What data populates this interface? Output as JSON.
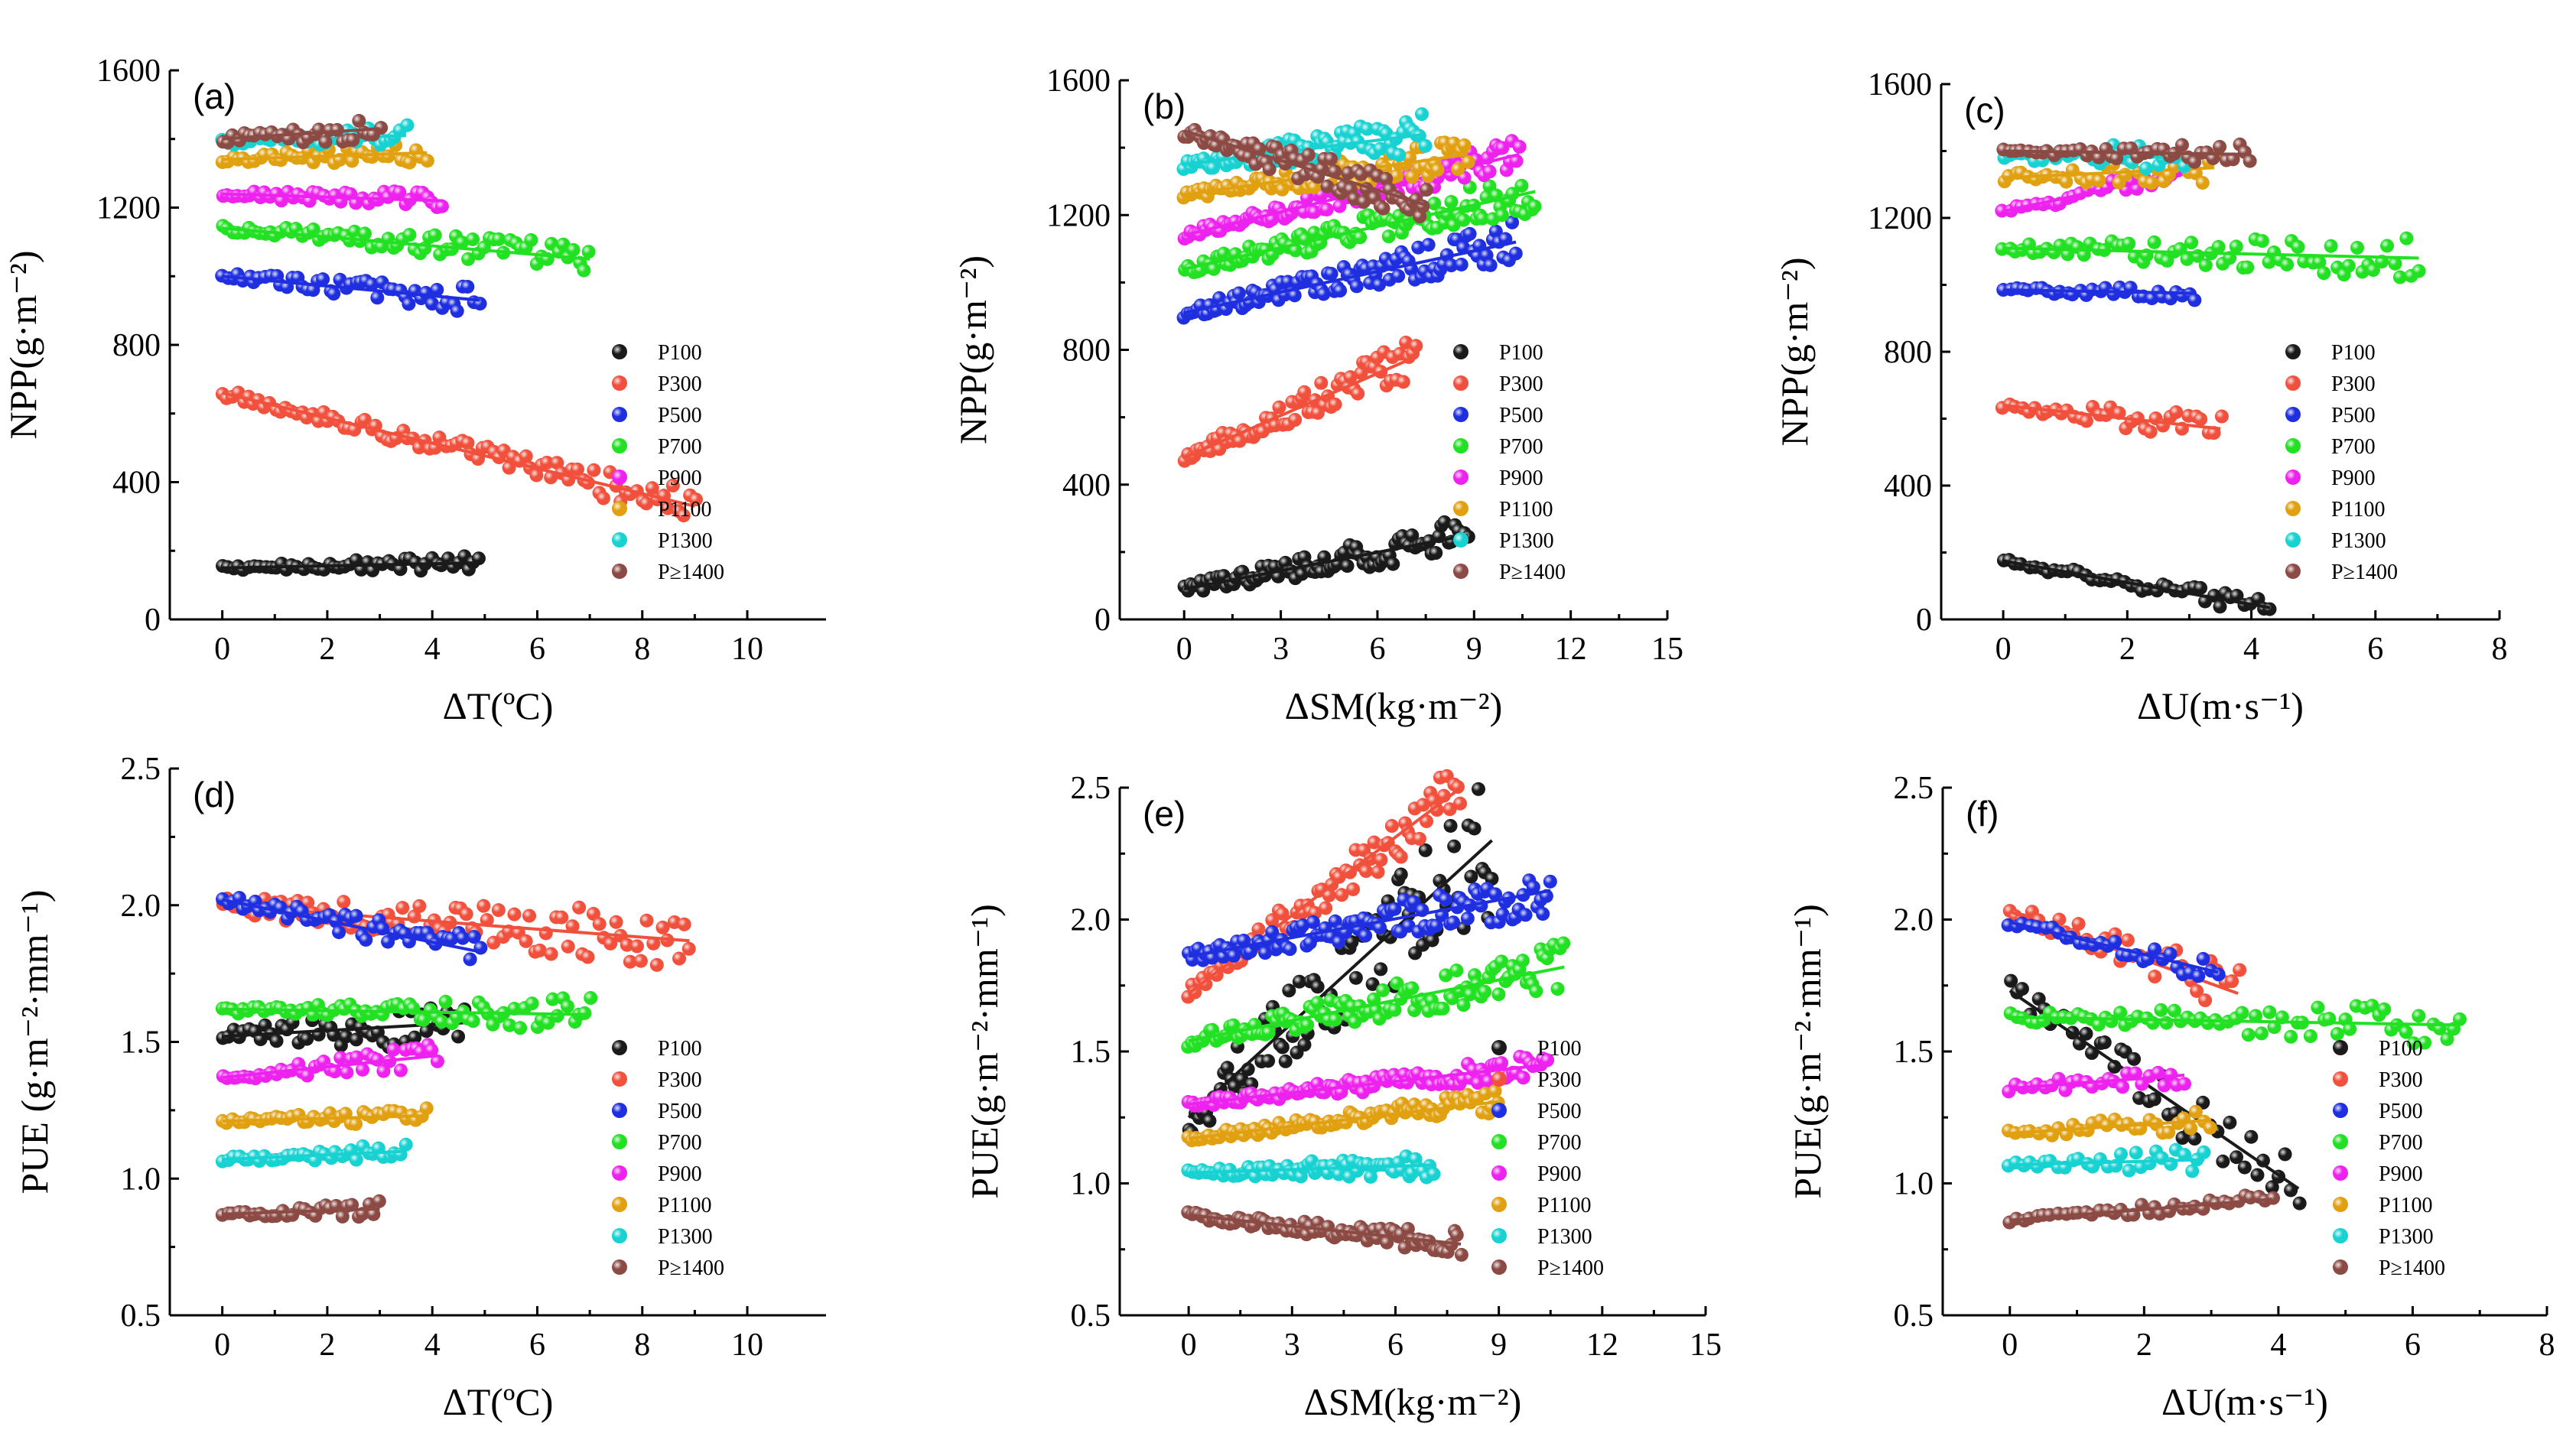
{
  "colors": {
    "P100": "#1a1a1a",
    "P300": "#f0503c",
    "P500": "#1f2fe0",
    "P700": "#22e022",
    "P900": "#ee22ee",
    "P1100": "#e0a010",
    "P1300": "#18d2d2",
    "P1400": "#8c4a44"
  },
  "legend_labels": [
    "P100",
    "P300",
    "P500",
    "P700",
    "P900",
    "P1100",
    "P1300",
    "P≥1400"
  ],
  "series_keys": [
    "P100",
    "P300",
    "P500",
    "P700",
    "P900",
    "P1100",
    "P1300",
    "P1400"
  ],
  "chart_data": [
    {
      "id": "a",
      "panel_label": "(a)",
      "type": "scatter",
      "xlabel": "ΔT(ºC)",
      "ylabel": "NPP(g·m⁻²)",
      "xlim": [
        -1,
        11.5
      ],
      "ylim": [
        0,
        1600
      ],
      "xticks": [
        0,
        2,
        4,
        6,
        8,
        10
      ],
      "yticks": [
        0,
        400,
        800,
        1200,
        1600
      ],
      "series": {
        "P100": {
          "x": [
            0,
            4.9
          ],
          "y0": 150,
          "y1": 165,
          "noise": 15
        },
        "P300": {
          "x": [
            0,
            9
          ],
          "y0": 660,
          "y1": 330,
          "noise": 30
        },
        "P500": {
          "x": [
            0,
            4.9
          ],
          "y0": 1000,
          "y1": 930,
          "noise": 25
        },
        "P700": {
          "x": [
            0,
            7
          ],
          "y0": 1140,
          "y1": 1050,
          "noise": 30
        },
        "P900": {
          "x": [
            0,
            4.2
          ],
          "y0": 1240,
          "y1": 1220,
          "noise": 20
        },
        "P1100": {
          "x": [
            0,
            3.9
          ],
          "y0": 1340,
          "y1": 1360,
          "noise": 20
        },
        "P1300": {
          "x": [
            0,
            3.5
          ],
          "y0": 1390,
          "y1": 1410,
          "noise": 20
        },
        "P1400": {
          "x": [
            0,
            3
          ],
          "y0": 1400,
          "y1": 1430,
          "noise": 25
        }
      }
    },
    {
      "id": "b",
      "panel_label": "(b)",
      "type": "scatter",
      "xlabel": "ΔSM(kg·m⁻²)",
      "ylabel": "NPP(g·m⁻²)",
      "xlim": [
        -2,
        15
      ],
      "ylim": [
        0,
        1600
      ],
      "xticks": [
        0,
        3,
        6,
        9,
        12,
        15
      ],
      "yticks": [
        0,
        400,
        800,
        1200,
        1600
      ],
      "series": {
        "P100": {
          "x": [
            0,
            8.8
          ],
          "y0": 90,
          "y1": 250,
          "noise": 35
        },
        "P300": {
          "x": [
            0,
            7.2
          ],
          "y0": 480,
          "y1": 780,
          "noise": 40
        },
        "P500": {
          "x": [
            0,
            10.3
          ],
          "y0": 910,
          "y1": 1120,
          "noise": 40
        },
        "P700": {
          "x": [
            0,
            10.9
          ],
          "y0": 1040,
          "y1": 1270,
          "noise": 40
        },
        "P900": {
          "x": [
            0,
            10.4
          ],
          "y0": 1140,
          "y1": 1380,
          "noise": 30
        },
        "P1100": {
          "x": [
            0,
            8.8
          ],
          "y0": 1260,
          "y1": 1380,
          "noise": 35
        },
        "P1300": {
          "x": [
            0,
            7.5
          ],
          "y0": 1350,
          "y1": 1440,
          "noise": 40
        },
        "P1400": {
          "x": [
            0,
            7.5
          ],
          "y0": 1450,
          "y1": 1230,
          "noise": 45
        }
      }
    },
    {
      "id": "c",
      "panel_label": "(c)",
      "type": "scatter",
      "xlabel": "ΔU(m·s⁻¹)",
      "ylabel": "NPP(g·m⁻²)",
      "xlim": [
        -1,
        8
      ],
      "ylim": [
        0,
        1600
      ],
      "xticks": [
        0,
        2,
        4,
        6,
        8
      ],
      "yticks": [
        0,
        400,
        800,
        1200,
        1600
      ],
      "series": {
        "P100": {
          "x": [
            0,
            4.3
          ],
          "y0": 175,
          "y1": 35,
          "noise": 20
        },
        "P300": {
          "x": [
            0,
            3.5
          ],
          "y0": 640,
          "y1": 570,
          "noise": 30
        },
        "P500": {
          "x": [
            0,
            3.1
          ],
          "y0": 985,
          "y1": 975,
          "noise": 15
        },
        "P700": {
          "x": [
            0,
            6.7
          ],
          "y0": 1110,
          "y1": 1080,
          "noise": 40
        },
        "P900": {
          "x": [
            0,
            2.8
          ],
          "y0": 1220,
          "y1": 1330,
          "noise": 20
        },
        "P1100": {
          "x": [
            0,
            3.4
          ],
          "y0": 1320,
          "y1": 1350,
          "noise": 30
        },
        "P1300": {
          "x": [
            0,
            2.9
          ],
          "y0": 1390,
          "y1": 1380,
          "noise": 30
        },
        "P1400": {
          "x": [
            0,
            4
          ],
          "y0": 1400,
          "y1": 1390,
          "noise": 20
        }
      }
    },
    {
      "id": "d",
      "panel_label": "(d)",
      "type": "scatter",
      "xlabel": "ΔT(ºC)",
      "ylabel": "PUE (g·m⁻²·mm⁻¹)",
      "xlim": [
        -1,
        11.5
      ],
      "ylim": [
        0.5,
        2.5
      ],
      "xticks": [
        0,
        2,
        4,
        6,
        8,
        10
      ],
      "yticks": [
        0.5,
        1.0,
        1.5,
        2.0,
        2.5
      ],
      "series": {
        "P100": {
          "x": [
            0,
            4.6
          ],
          "y0": 1.52,
          "y1": 1.57,
          "noise": 0.06
        },
        "P300": {
          "x": [
            0,
            8.9
          ],
          "y0": 2.0,
          "y1": 1.87,
          "noise": 0.07
        },
        "P500": {
          "x": [
            0,
            4.9
          ],
          "y0": 2.02,
          "y1": 1.83,
          "noise": 0.04
        },
        "P700": {
          "x": [
            0,
            7
          ],
          "y0": 1.62,
          "y1": 1.6,
          "noise": 0.04
        },
        "P900": {
          "x": [
            0,
            4.1
          ],
          "y0": 1.37,
          "y1": 1.45,
          "noise": 0.03
        },
        "P1100": {
          "x": [
            0,
            3.9
          ],
          "y0": 1.21,
          "y1": 1.23,
          "noise": 0.02
        },
        "P1300": {
          "x": [
            0,
            3.5
          ],
          "y0": 1.07,
          "y1": 1.1,
          "noise": 0.02
        },
        "P1400": {
          "x": [
            0,
            3
          ],
          "y0": 0.87,
          "y1": 0.89,
          "noise": 0.02
        }
      }
    },
    {
      "id": "e",
      "panel_label": "(e)",
      "type": "scatter",
      "xlabel": "ΔSM(kg·m⁻²)",
      "ylabel": "PUE(g·m⁻²·mm⁻¹)",
      "xlim": [
        -2,
        15
      ],
      "ylim": [
        0.5,
        2.5
      ],
      "xticks": [
        0,
        3,
        6,
        9,
        12,
        15
      ],
      "yticks": [
        0.5,
        1.0,
        1.5,
        2.0,
        2.5
      ],
      "series": {
        "P100": {
          "x": [
            0,
            8.8
          ],
          "y0": 1.25,
          "y1": 2.3,
          "noise": 0.18
        },
        "P300": {
          "x": [
            0,
            7.9
          ],
          "y0": 1.72,
          "y1": 2.5,
          "noise": 0.07
        },
        "P500": {
          "x": [
            0,
            10.5
          ],
          "y0": 1.86,
          "y1": 2.11,
          "noise": 0.06
        },
        "P700": {
          "x": [
            0,
            10.9
          ],
          "y0": 1.54,
          "y1": 1.82,
          "noise": 0.06
        },
        "P900": {
          "x": [
            0,
            10.4
          ],
          "y0": 1.3,
          "y1": 1.45,
          "noise": 0.03
        },
        "P1100": {
          "x": [
            0,
            9
          ],
          "y0": 1.17,
          "y1": 1.31,
          "noise": 0.03
        },
        "P1300": {
          "x": [
            0,
            7.1
          ],
          "y0": 1.04,
          "y1": 1.07,
          "noise": 0.03
        },
        "P1400": {
          "x": [
            0,
            7.9
          ],
          "y0": 0.88,
          "y1": 0.77,
          "noise": 0.03
        }
      }
    },
    {
      "id": "f",
      "panel_label": "(f)",
      "type": "scatter",
      "xlabel": "ΔU(m·s⁻¹)",
      "ylabel": "PUE(g·m⁻²·mm⁻¹)",
      "xlim": [
        -1,
        8
      ],
      "ylim": [
        0.5,
        2.5
      ],
      "xticks": [
        0,
        2,
        4,
        6,
        8
      ],
      "yticks": [
        0.5,
        1.0,
        1.5,
        2.0,
        2.5
      ],
      "series": {
        "P100": {
          "x": [
            0,
            4.3
          ],
          "y0": 1.73,
          "y1": 0.98,
          "noise": 0.1
        },
        "P300": {
          "x": [
            0,
            3.4
          ],
          "y0": 2.03,
          "y1": 1.72,
          "noise": 0.07
        },
        "P500": {
          "x": [
            0,
            3.1
          ],
          "y0": 1.99,
          "y1": 1.8,
          "noise": 0.03
        },
        "P700": {
          "x": [
            0,
            6.7
          ],
          "y0": 1.63,
          "y1": 1.6,
          "noise": 0.05
        },
        "P900": {
          "x": [
            0,
            2.6
          ],
          "y0": 1.36,
          "y1": 1.41,
          "noise": 0.03
        },
        "P1100": {
          "x": [
            0,
            3
          ],
          "y0": 1.19,
          "y1": 1.24,
          "noise": 0.03
        },
        "P1300": {
          "x": [
            0,
            2.9
          ],
          "y0": 1.07,
          "y1": 1.09,
          "noise": 0.03
        },
        "P1400": {
          "x": [
            0,
            3.9
          ],
          "y0": 0.86,
          "y1": 0.94,
          "noise": 0.02
        }
      }
    }
  ]
}
